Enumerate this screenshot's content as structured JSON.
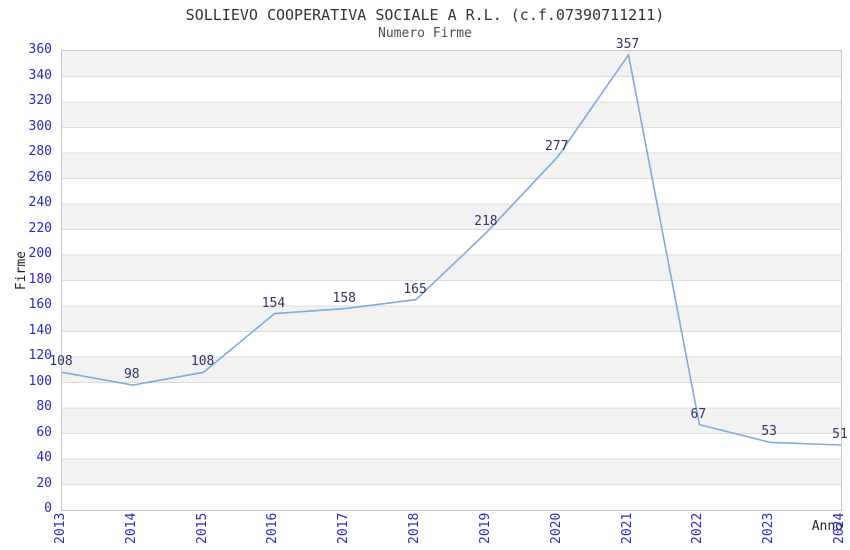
{
  "page": {
    "title": "SOLLIEVO COOPERATIVA SOCIALE A R.L. (c.f.07390711211)",
    "subtitle": "Numero Firme"
  },
  "chart_data": {
    "type": "line",
    "title": "SOLLIEVO COOPERATIVA SOCIALE A R.L. (c.f.07390711211)",
    "subtitle": "Numero Firme",
    "xlabel": "Anno",
    "ylabel": "Firme",
    "categories": [
      "2013",
      "2014",
      "2015",
      "2016",
      "2017",
      "2018",
      "2019",
      "2020",
      "2021",
      "2022",
      "2023",
      "2024"
    ],
    "series": [
      {
        "name": "Numero Firme",
        "values": [
          108,
          98,
          108,
          154,
          158,
          165,
          218,
          277,
          357,
          67,
          53,
          51
        ]
      }
    ],
    "data_labels_visible": true,
    "ylim": [
      0,
      360
    ],
    "ytick_step": 20,
    "grid": "horizontal-bands",
    "legend": "none",
    "colors": {
      "line": "#7CACDF",
      "band": "#F2F2F2",
      "gridline": "#DDDDDD",
      "plot_border": "#C8C8C8",
      "tick_label": "#2929CC",
      "data_label": "#333366",
      "axis_title": "#222222",
      "title": "#333333",
      "subtitle": "#4D4D4D"
    }
  }
}
